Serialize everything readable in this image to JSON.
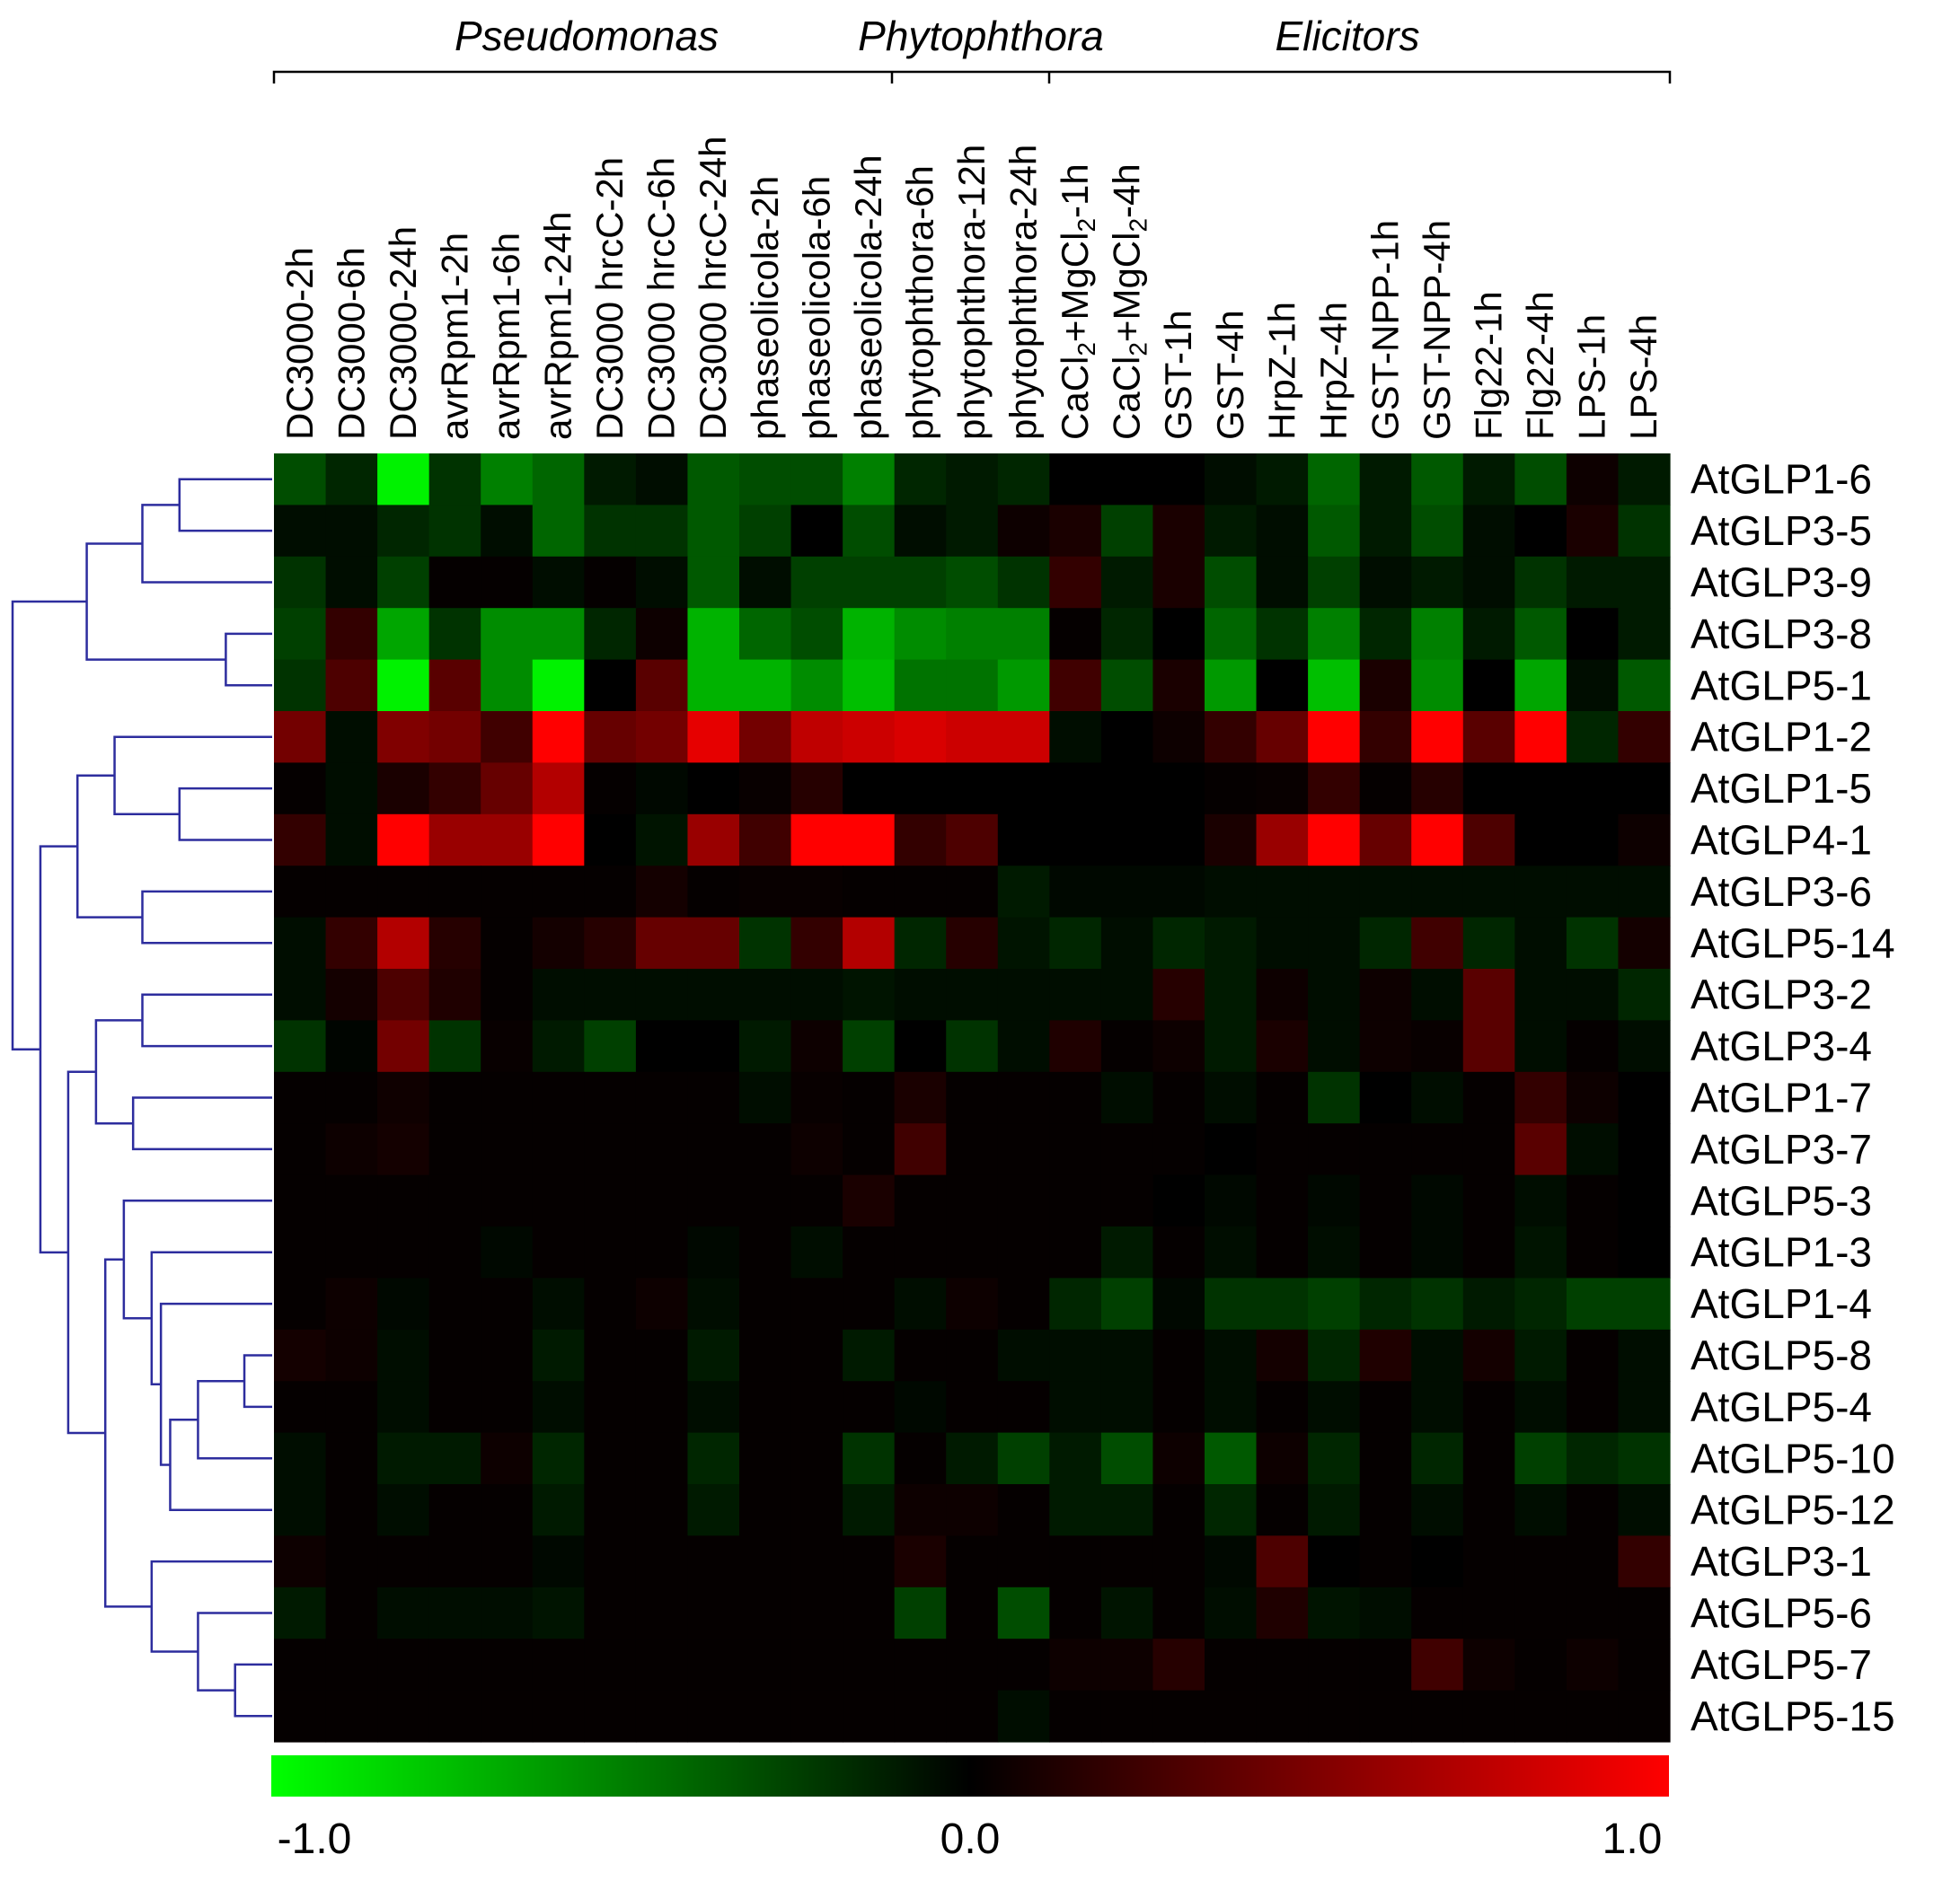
{
  "chart_data": {
    "type": "heatmap",
    "title": "",
    "xlabel": "",
    "ylabel": "",
    "column_groups": [
      {
        "label": "Pseudomonas",
        "columns": [
          "DC3000-2h",
          "DC3000-6h",
          "DC3000-24h",
          "avrRpm1-2h",
          "avrRpm1-6h",
          "avrRpm1-24h",
          "DC3000 hrcC-2h",
          "DC3000 hrcC-6h",
          "DC3000 hrcC-24h",
          "phaseolicola-2h",
          "phaseolicola-6h",
          "phaseolicola-24h"
        ]
      },
      {
        "label": "Phytophthora",
        "columns": [
          "phytophthora-6h",
          "phytophthora-12h",
          "phytophthora-24h"
        ]
      },
      {
        "label": "Elicitors",
        "columns": [
          "CaCl2+MgCl2-1h",
          "CaCl2+MgCl2-4h",
          "GST-1h",
          "GST-4h",
          "HrpZ-1h",
          "HrpZ-4h",
          "GST-NPP-1h",
          "GST-NPP-4h",
          "Flg22-1h",
          "Flg22-4h",
          "LPS-1h",
          "LPS-4h"
        ]
      }
    ],
    "columns": [
      {
        "pre": "DC3000-2h",
        "sub": "",
        "post": ""
      },
      {
        "pre": "DC3000-6h",
        "sub": "",
        "post": ""
      },
      {
        "pre": "DC3000-24h",
        "sub": "",
        "post": ""
      },
      {
        "pre": "avrRpm1-2h",
        "sub": "",
        "post": ""
      },
      {
        "pre": "avrRpm1-6h",
        "sub": "",
        "post": ""
      },
      {
        "pre": "avrRpm1-24h",
        "sub": "",
        "post": ""
      },
      {
        "pre": "DC3000 hrcC-2h",
        "sub": "",
        "post": ""
      },
      {
        "pre": "DC3000 hrcC-6h",
        "sub": "",
        "post": ""
      },
      {
        "pre": "DC3000 hrcC-24h",
        "sub": "",
        "post": ""
      },
      {
        "pre": "phaseolicola-2h",
        "sub": "",
        "post": ""
      },
      {
        "pre": "phaseolicola-6h",
        "sub": "",
        "post": ""
      },
      {
        "pre": "phaseolicola-24h",
        "sub": "",
        "post": ""
      },
      {
        "pre": "phytophthora-6h",
        "sub": "",
        "post": ""
      },
      {
        "pre": "phytophthora-12h",
        "sub": "",
        "post": ""
      },
      {
        "pre": "phytophthora-24h",
        "sub": "",
        "post": ""
      },
      {
        "pre": "CaCl",
        "sub": "2",
        "post": "+MgCl",
        "sub2": "2",
        "post2": "-1h"
      },
      {
        "pre": "CaCl",
        "sub": "2",
        "post": "+MgCl",
        "sub2": "2",
        "post2": "-4h"
      },
      {
        "pre": "GST-1h",
        "sub": "",
        "post": ""
      },
      {
        "pre": "GST-4h",
        "sub": "",
        "post": ""
      },
      {
        "pre": "HrpZ-1h",
        "sub": "",
        "post": ""
      },
      {
        "pre": "HrpZ-4h",
        "sub": "",
        "post": ""
      },
      {
        "pre": "GST-NPP-1h",
        "sub": "",
        "post": ""
      },
      {
        "pre": "GST-NPP-4h",
        "sub": "",
        "post": ""
      },
      {
        "pre": "Flg22-1h",
        "sub": "",
        "post": ""
      },
      {
        "pre": "Flg22-4h",
        "sub": "",
        "post": ""
      },
      {
        "pre": "LPS-1h",
        "sub": "",
        "post": ""
      },
      {
        "pre": "LPS-4h",
        "sub": "",
        "post": ""
      }
    ],
    "rows": [
      "AtGLP1-6",
      "AtGLP3-5",
      "AtGLP3-9",
      "AtGLP3-8",
      "AtGLP5-1",
      "AtGLP1-2",
      "AtGLP1-5",
      "AtGLP4-1",
      "AtGLP3-6",
      "AtGLP5-14",
      "AtGLP3-2",
      "AtGLP3-4",
      "AtGLP1-7",
      "AtGLP3-7",
      "AtGLP5-3",
      "AtGLP1-3",
      "AtGLP1-4",
      "AtGLP5-8",
      "AtGLP5-4",
      "AtGLP5-10",
      "AtGLP5-12",
      "AtGLP3-1",
      "AtGLP5-6",
      "AtGLP5-7",
      "AtGLP5-15"
    ],
    "values": [
      [
        -0.3,
        -0.15,
        -0.95,
        -0.2,
        -0.5,
        -0.4,
        -0.1,
        -0.05,
        -0.35,
        -0.3,
        -0.3,
        -0.5,
        -0.15,
        -0.1,
        -0.15,
        0.0,
        0.0,
        0.0,
        -0.05,
        -0.1,
        -0.4,
        -0.1,
        -0.35,
        -0.1,
        -0.3,
        0.05,
        -0.1
      ],
      [
        -0.05,
        -0.05,
        -0.15,
        -0.2,
        -0.05,
        -0.4,
        -0.2,
        -0.2,
        -0.35,
        -0.25,
        0.0,
        -0.3,
        -0.05,
        -0.1,
        0.05,
        0.1,
        -0.25,
        0.1,
        -0.1,
        -0.05,
        -0.35,
        -0.1,
        -0.3,
        -0.05,
        0.0,
        0.1,
        -0.2
      ],
      [
        -0.2,
        -0.05,
        -0.25,
        0.02,
        0.02,
        -0.05,
        0.02,
        -0.05,
        -0.35,
        -0.05,
        -0.25,
        -0.25,
        -0.25,
        -0.3,
        -0.2,
        0.2,
        -0.1,
        0.1,
        -0.3,
        -0.05,
        -0.25,
        -0.05,
        -0.1,
        -0.05,
        -0.2,
        -0.1,
        -0.1
      ],
      [
        -0.25,
        0.2,
        -0.65,
        -0.2,
        -0.55,
        -0.55,
        -0.15,
        0.05,
        -0.7,
        -0.4,
        -0.3,
        -0.7,
        -0.55,
        -0.5,
        -0.5,
        0.02,
        -0.15,
        0.0,
        -0.4,
        -0.2,
        -0.5,
        -0.15,
        -0.5,
        -0.1,
        -0.35,
        0.0,
        -0.1
      ],
      [
        -0.2,
        0.3,
        -0.95,
        0.35,
        -0.55,
        -0.95,
        0.0,
        0.35,
        -0.7,
        -0.7,
        -0.55,
        -0.75,
        -0.45,
        -0.45,
        -0.6,
        0.25,
        -0.3,
        0.1,
        -0.6,
        0.0,
        -0.75,
        0.1,
        -0.55,
        0.0,
        -0.65,
        -0.05,
        -0.35
      ],
      [
        0.45,
        -0.05,
        0.5,
        0.45,
        0.25,
        1.0,
        0.4,
        0.45,
        0.9,
        0.45,
        0.75,
        0.8,
        0.85,
        0.8,
        0.8,
        -0.05,
        0.0,
        0.05,
        0.2,
        0.4,
        1.0,
        0.2,
        1.0,
        0.35,
        1.0,
        -0.15,
        0.2
      ],
      [
        0.02,
        -0.05,
        0.1,
        0.2,
        0.4,
        0.7,
        0.02,
        -0.03,
        0.0,
        0.03,
        0.15,
        0.0,
        0.0,
        0.0,
        0.0,
        0.0,
        0.0,
        0.0,
        0.02,
        0.03,
        0.2,
        0.02,
        0.15,
        0.0,
        0.0,
        0.0,
        0.0
      ],
      [
        0.2,
        -0.05,
        1.0,
        0.6,
        0.6,
        1.0,
        0.0,
        -0.08,
        0.6,
        0.25,
        1.0,
        1.0,
        0.2,
        0.3,
        0.0,
        0.0,
        0.0,
        0.0,
        0.1,
        0.6,
        1.0,
        0.4,
        1.0,
        0.3,
        0.0,
        0.0,
        0.05
      ],
      [
        0.02,
        0.02,
        0.02,
        0.02,
        0.02,
        0.02,
        0.02,
        0.08,
        0.02,
        0.03,
        0.03,
        0.02,
        0.02,
        0.02,
        -0.1,
        -0.03,
        -0.03,
        -0.03,
        -0.05,
        -0.05,
        -0.05,
        -0.05,
        -0.05,
        -0.05,
        -0.05,
        -0.05,
        -0.05
      ],
      [
        -0.05,
        0.2,
        0.7,
        0.15,
        0.02,
        0.08,
        0.15,
        0.4,
        0.4,
        -0.2,
        0.2,
        0.7,
        -0.15,
        0.15,
        -0.08,
        -0.15,
        -0.05,
        -0.15,
        -0.1,
        -0.05,
        -0.05,
        -0.15,
        0.25,
        -0.15,
        -0.05,
        -0.2,
        0.08
      ],
      [
        -0.05,
        0.08,
        0.3,
        0.12,
        0.02,
        -0.05,
        -0.05,
        -0.05,
        -0.05,
        -0.05,
        -0.05,
        -0.08,
        -0.05,
        -0.05,
        -0.05,
        -0.05,
        -0.05,
        0.15,
        -0.1,
        0.05,
        -0.05,
        0.05,
        -0.05,
        0.35,
        -0.05,
        -0.05,
        -0.15
      ],
      [
        -0.2,
        -0.02,
        0.45,
        -0.2,
        0.03,
        -0.1,
        -0.25,
        0.0,
        0.0,
        -0.1,
        0.05,
        -0.25,
        0.0,
        -0.2,
        -0.05,
        0.12,
        0.02,
        0.05,
        -0.1,
        0.1,
        -0.05,
        0.05,
        0.03,
        0.35,
        -0.05,
        0.02,
        -0.05
      ],
      [
        0.02,
        0.02,
        0.06,
        0.02,
        0.02,
        0.02,
        0.02,
        0.02,
        0.02,
        -0.05,
        0.03,
        0.02,
        0.1,
        0.02,
        0.02,
        0.02,
        -0.05,
        0.02,
        -0.05,
        0.02,
        -0.2,
        0.0,
        -0.05,
        0.02,
        0.2,
        0.05,
        0.0
      ],
      [
        0.02,
        0.05,
        0.08,
        0.02,
        0.02,
        0.02,
        0.02,
        0.02,
        0.02,
        0.02,
        0.05,
        0.02,
        0.25,
        0.02,
        0.02,
        0.02,
        0.02,
        0.02,
        0.0,
        0.02,
        0.02,
        0.02,
        0.02,
        0.02,
        0.35,
        -0.05,
        0.0
      ],
      [
        0.02,
        0.02,
        0.02,
        0.02,
        0.02,
        0.02,
        0.02,
        0.02,
        0.02,
        0.02,
        0.02,
        0.1,
        0.02,
        0.02,
        0.02,
        0.02,
        0.02,
        0.0,
        -0.03,
        0.02,
        -0.03,
        0.02,
        -0.03,
        0.02,
        -0.05,
        0.02,
        0.0
      ],
      [
        0.02,
        0.02,
        0.02,
        0.02,
        -0.03,
        0.02,
        0.02,
        0.02,
        -0.03,
        0.02,
        -0.05,
        0.02,
        0.02,
        0.02,
        0.02,
        0.02,
        -0.1,
        0.02,
        -0.05,
        0.02,
        -0.05,
        0.02,
        -0.03,
        0.02,
        -0.08,
        0.02,
        0.0
      ],
      [
        0.02,
        0.05,
        -0.03,
        0.02,
        0.02,
        -0.05,
        0.02,
        0.05,
        -0.05,
        0.02,
        0.02,
        0.02,
        -0.05,
        0.05,
        0.02,
        -0.15,
        -0.25,
        -0.03,
        -0.2,
        -0.2,
        -0.25,
        -0.15,
        -0.2,
        -0.1,
        -0.15,
        -0.25,
        -0.25
      ],
      [
        0.08,
        0.05,
        -0.05,
        0.02,
        0.02,
        -0.1,
        0.02,
        0.02,
        -0.1,
        0.02,
        0.02,
        -0.1,
        0.02,
        0.02,
        -0.05,
        -0.05,
        -0.05,
        0.02,
        -0.05,
        0.08,
        -0.15,
        0.12,
        -0.05,
        0.08,
        -0.1,
        0.02,
        -0.05
      ],
      [
        0.02,
        0.02,
        -0.05,
        0.02,
        0.02,
        -0.05,
        0.02,
        0.02,
        -0.05,
        0.02,
        0.02,
        0.02,
        -0.03,
        0.02,
        0.02,
        -0.05,
        -0.05,
        0.02,
        -0.05,
        0.02,
        -0.05,
        0.02,
        -0.05,
        0.02,
        -0.05,
        0.02,
        -0.05
      ],
      [
        -0.05,
        0.02,
        -0.1,
        -0.1,
        0.05,
        -0.15,
        0.02,
        0.02,
        -0.15,
        0.02,
        0.02,
        -0.2,
        0.02,
        -0.1,
        -0.25,
        -0.1,
        -0.3,
        0.05,
        -0.35,
        0.05,
        -0.15,
        0.02,
        -0.15,
        0.02,
        -0.25,
        -0.15,
        -0.2
      ],
      [
        -0.05,
        0.02,
        -0.05,
        0.02,
        0.02,
        -0.1,
        0.02,
        0.02,
        -0.1,
        0.02,
        0.02,
        -0.1,
        0.05,
        0.05,
        0.02,
        -0.1,
        -0.1,
        0.02,
        -0.15,
        0.02,
        -0.1,
        0.02,
        -0.05,
        0.02,
        -0.05,
        0.02,
        -0.05
      ],
      [
        0.05,
        0.02,
        0.02,
        0.02,
        0.02,
        -0.03,
        0.02,
        0.02,
        0.02,
        0.02,
        0.02,
        0.02,
        0.1,
        0.02,
        0.02,
        0.02,
        0.02,
        0.02,
        -0.03,
        0.3,
        0.0,
        0.02,
        0.0,
        0.02,
        0.02,
        0.02,
        0.2
      ],
      [
        -0.1,
        0.02,
        -0.05,
        -0.05,
        -0.05,
        -0.08,
        0.02,
        0.02,
        0.02,
        0.02,
        0.02,
        0.02,
        -0.25,
        0.02,
        -0.3,
        0.02,
        -0.08,
        0.02,
        -0.05,
        0.12,
        -0.08,
        -0.05,
        0.02,
        0.02,
        0.02,
        0.02,
        0.02
      ],
      [
        0.02,
        0.02,
        0.02,
        0.02,
        0.02,
        0.02,
        0.02,
        0.02,
        0.02,
        0.02,
        0.02,
        0.02,
        0.02,
        0.02,
        0.02,
        0.05,
        0.05,
        0.15,
        0.02,
        0.02,
        0.02,
        0.02,
        0.25,
        0.05,
        0.02,
        0.05,
        0.02
      ],
      [
        0.02,
        0.02,
        0.02,
        0.02,
        0.02,
        0.02,
        0.02,
        0.02,
        0.02,
        0.02,
        0.02,
        0.02,
        0.02,
        0.02,
        -0.05,
        0.02,
        0.02,
        0.02,
        0.02,
        0.02,
        0.02,
        0.02,
        0.02,
        0.02,
        0.02,
        0.02,
        0.02
      ]
    ],
    "scale": {
      "min": -1.0,
      "mid": 0.0,
      "max": 1.0,
      "min_label": "-1.0",
      "mid_label": "0.0",
      "max_label": "1.0",
      "low_color": "#00ff00",
      "mid_color": "#000000",
      "high_color": "#ff0000"
    },
    "dendrogram_color": "#2d2d9e",
    "dendrogram": [
      {
        "l": 0,
        "r": 1,
        "h": 0.1
      },
      {
        "l": 25,
        "r": 2,
        "h": 0.14
      },
      {
        "l": 3,
        "r": 4,
        "h": 0.05
      },
      {
        "l": 26,
        "r": 27,
        "h": 0.2
      },
      {
        "l": 6,
        "r": 7,
        "h": 0.1
      },
      {
        "l": 5,
        "r": 29,
        "h": 0.17
      },
      {
        "l": 8,
        "r": 9,
        "h": 0.14
      },
      {
        "l": 30,
        "r": 31,
        "h": 0.21
      },
      {
        "l": 10,
        "r": 11,
        "h": 0.14
      },
      {
        "l": 12,
        "r": 13,
        "h": 0.15
      },
      {
        "l": 33,
        "r": 34,
        "h": 0.19
      },
      {
        "l": 17,
        "r": 18,
        "h": 0.03
      },
      {
        "l": 36,
        "r": 19,
        "h": 0.08
      },
      {
        "l": 37,
        "r": 20,
        "h": 0.11
      },
      {
        "l": 16,
        "r": 38,
        "h": 0.12
      },
      {
        "l": 15,
        "r": 39,
        "h": 0.13
      },
      {
        "l": 14,
        "r": 40,
        "h": 0.16
      },
      {
        "l": 23,
        "r": 24,
        "h": 0.04
      },
      {
        "l": 22,
        "r": 42,
        "h": 0.08
      },
      {
        "l": 21,
        "r": 43,
        "h": 0.13
      },
      {
        "l": 41,
        "r": 44,
        "h": 0.18
      },
      {
        "l": 35,
        "r": 45,
        "h": 0.22
      },
      {
        "l": 32,
        "r": 46,
        "h": 0.25
      },
      {
        "l": 28,
        "r": 47,
        "h": 0.28
      }
    ]
  }
}
